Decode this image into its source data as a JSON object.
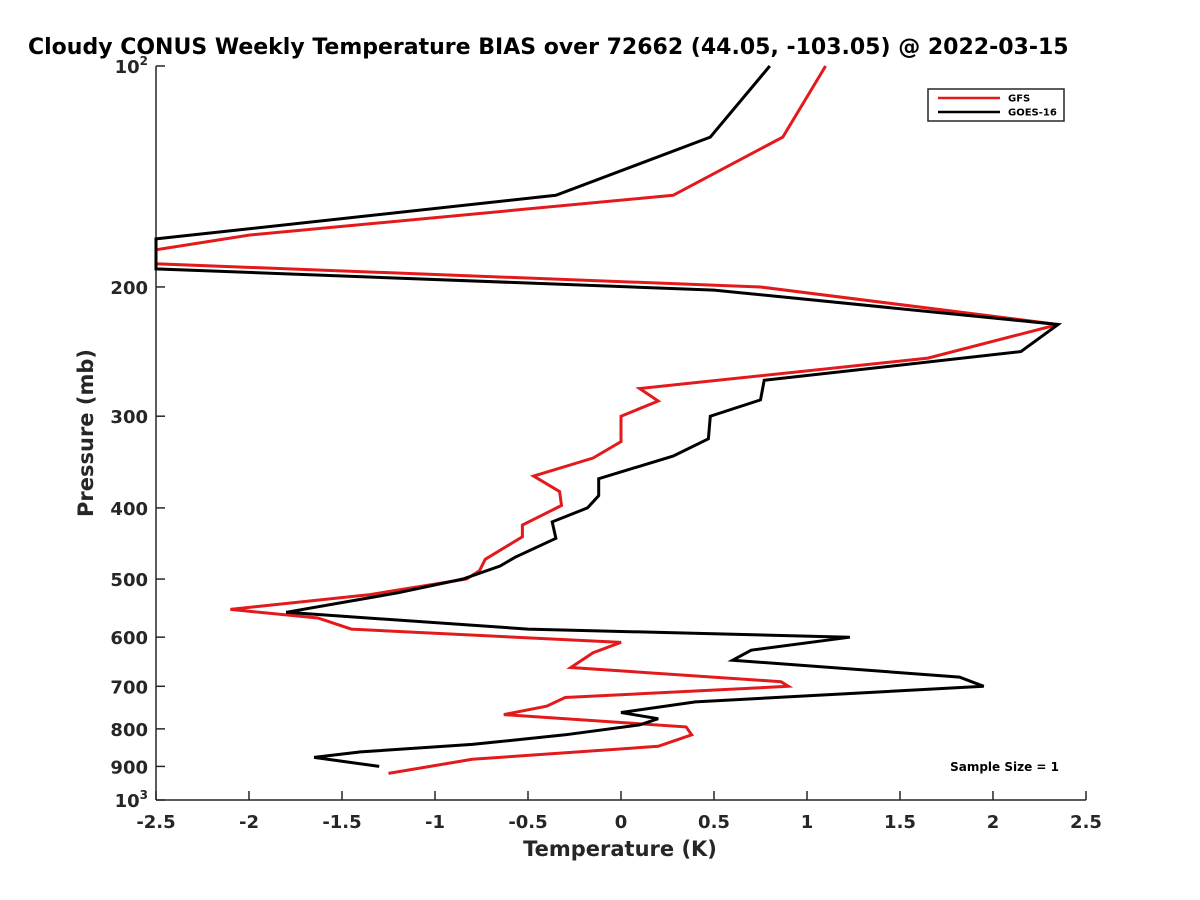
{
  "chart_data": {
    "type": "line",
    "title": "Cloudy CONUS Weekly Temperature BIAS over 72662 (44.05, -103.05) @ 2022-03-15",
    "xlabel": "Temperature (K)",
    "ylabel": "Pressure (mb)",
    "xlim": [
      -2.5,
      2.5
    ],
    "ylim": [
      100,
      1000
    ],
    "y_scale": "log",
    "y_reversed": true,
    "grid": false,
    "legend_position": "top-right",
    "x_ticks": [
      "-2.5",
      "-2",
      "-1.5",
      "-1",
      "-0.5",
      "0",
      "0.5",
      "1",
      "1.5",
      "2",
      "2.5"
    ],
    "x_tick_values": [
      -2.5,
      -2,
      -1.5,
      -1,
      -0.5,
      0,
      0.5,
      1,
      1.5,
      2,
      2.5
    ],
    "y_ticks": [
      {
        "value": 100,
        "base": "10",
        "exp": "2"
      },
      {
        "value": 200,
        "label": "200"
      },
      {
        "value": 300,
        "label": "300"
      },
      {
        "value": 400,
        "label": "400"
      },
      {
        "value": 500,
        "label": "500"
      },
      {
        "value": 600,
        "label": "600"
      },
      {
        "value": 700,
        "label": "700"
      },
      {
        "value": 800,
        "label": "800"
      },
      {
        "value": 900,
        "label": "900"
      },
      {
        "value": 1000,
        "base": "10",
        "exp": "3"
      }
    ],
    "series": [
      {
        "name": "GFS",
        "color": "#e31a1c",
        "points": [
          [
            1.1,
            100
          ],
          [
            0.87,
            125
          ],
          [
            0.28,
            150
          ],
          [
            -2.0,
            170
          ],
          [
            -2.5,
            178
          ],
          [
            -2.5,
            186
          ],
          [
            0.75,
            200
          ],
          [
            2.35,
            225
          ],
          [
            1.65,
            250
          ],
          [
            0.1,
            275
          ],
          [
            0.2,
            286
          ],
          [
            0.0,
            300
          ],
          [
            0.0,
            325
          ],
          [
            -0.15,
            342
          ],
          [
            -0.47,
            362
          ],
          [
            -0.33,
            380
          ],
          [
            -0.32,
            397
          ],
          [
            -0.53,
            422
          ],
          [
            -0.53,
            438
          ],
          [
            -0.73,
            470
          ],
          [
            -0.76,
            487
          ],
          [
            -0.83,
            500
          ],
          [
            -1.35,
            525
          ],
          [
            -2.1,
            550
          ],
          [
            -1.63,
            565
          ],
          [
            -1.45,
            585
          ],
          [
            0.0,
            610
          ],
          [
            -0.15,
            630
          ],
          [
            -0.27,
            660
          ],
          [
            0.86,
            690
          ],
          [
            0.9,
            700
          ],
          [
            -0.3,
            725
          ],
          [
            -0.4,
            745
          ],
          [
            -0.63,
            765
          ],
          [
            0.35,
            795
          ],
          [
            0.38,
            815
          ],
          [
            0.2,
            845
          ],
          [
            -0.8,
            880
          ],
          [
            -1.25,
            920
          ]
        ]
      },
      {
        "name": "GOES-16",
        "color": "#000000",
        "points": [
          [
            0.8,
            100
          ],
          [
            0.48,
            125
          ],
          [
            -0.35,
            150
          ],
          [
            -2.5,
            172
          ],
          [
            -2.5,
            189
          ],
          [
            0.5,
            202
          ],
          [
            2.35,
            225
          ],
          [
            2.15,
            245
          ],
          [
            0.77,
            268
          ],
          [
            0.75,
            285
          ],
          [
            0.48,
            300
          ],
          [
            0.47,
            322
          ],
          [
            0.28,
            340
          ],
          [
            -0.12,
            365
          ],
          [
            -0.12,
            385
          ],
          [
            -0.18,
            400
          ],
          [
            -0.37,
            418
          ],
          [
            -0.35,
            440
          ],
          [
            -0.57,
            467
          ],
          [
            -0.65,
            480
          ],
          [
            -0.85,
            500
          ],
          [
            -1.2,
            522
          ],
          [
            -1.8,
            555
          ],
          [
            -0.5,
            585
          ],
          [
            1.23,
            600
          ],
          [
            0.7,
            625
          ],
          [
            0.6,
            645
          ],
          [
            1.82,
            680
          ],
          [
            1.95,
            700
          ],
          [
            0.4,
            735
          ],
          [
            0.0,
            760
          ],
          [
            0.2,
            775
          ],
          [
            0.1,
            790
          ],
          [
            -0.3,
            815
          ],
          [
            -0.8,
            840
          ],
          [
            -1.4,
            860
          ],
          [
            -1.65,
            875
          ],
          [
            -1.3,
            900
          ]
        ]
      }
    ],
    "annotation": "Sample Size = 1"
  }
}
